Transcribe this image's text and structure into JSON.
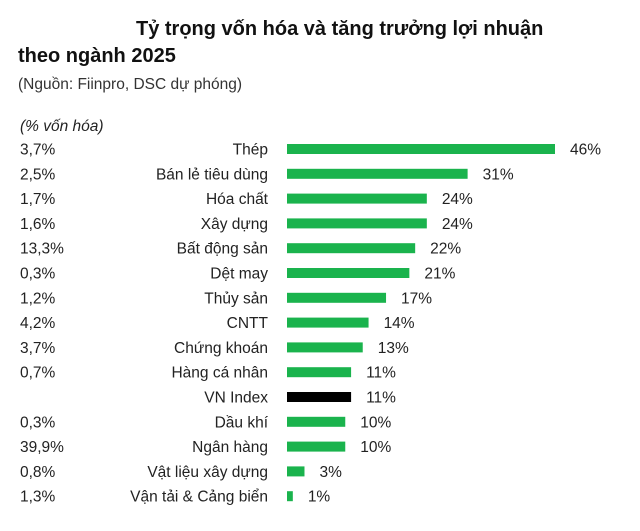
{
  "title_line1": "Tỷ trọng vốn hóa và tăng trưởng lợi nhuận",
  "title_line2": "theo ngành 2025",
  "source": "(Nguồn: Fiinpro, DSC dự phóng)",
  "cap_label": "(% vốn hóa)",
  "colors": {
    "bar": "#1ab34d",
    "highlight": "#000000"
  },
  "chart_data": {
    "type": "bar",
    "orientation": "horizontal",
    "categories": [
      "Thép",
      "Bán lẻ tiêu dùng",
      "Hóa chất",
      "Xây dựng",
      "Bất động sản",
      "Dệt may",
      "Thủy sản",
      "CNTT",
      "Chứng khoán",
      "Hàng cá nhân",
      "VN Index",
      "Dầu khí",
      "Ngân hàng",
      "Vật liệu xây dựng",
      "Vận tải & Cảng biển"
    ],
    "values": [
      46,
      31,
      24,
      24,
      22,
      21,
      17,
      14,
      13,
      11,
      11,
      10,
      10,
      3,
      1
    ],
    "value_labels": [
      "46%",
      "31%",
      "24%",
      "24%",
      "22%",
      "21%",
      "17%",
      "14%",
      "13%",
      "11%",
      "11%",
      "10%",
      "10%",
      "3%",
      "1%"
    ],
    "market_cap_share": [
      "3,7%",
      "2,5%",
      "1,7%",
      "1,6%",
      "13,3%",
      "0,3%",
      "1,2%",
      "4,2%",
      "3,7%",
      "0,7%",
      "",
      "0,3%",
      "39,9%",
      "0,8%",
      "1,3%"
    ],
    "highlight_category": "VN Index",
    "title": "Tỷ trọng vốn hóa và tăng trưởng lợi nhuận theo ngành 2025",
    "xlabel": "",
    "ylabel": "",
    "grid": false
  }
}
